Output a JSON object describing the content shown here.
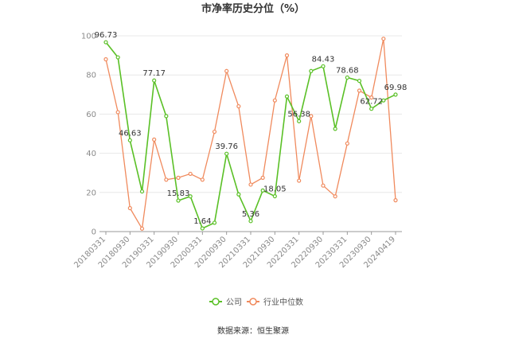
{
  "colors": {
    "company": "#5ac026",
    "industry": "#f08a5d",
    "grid": "#e8e8e8",
    "axis": "#999999"
  },
  "chart_data": {
    "type": "line",
    "title": "市净率历史分位（%）",
    "source_text": "数据来源：恒生聚源",
    "xlabel": "",
    "ylabel": "",
    "ylim": [
      0,
      100
    ],
    "yticks": [
      0,
      20,
      40,
      60,
      80,
      100
    ],
    "grid": true,
    "legend_position": "bottom",
    "x_tick_labels": [
      "20180331",
      "20180930",
      "20190331",
      "20190930",
      "20200331",
      "20200930",
      "20210331",
      "20210930",
      "20220331",
      "20220930",
      "20230331",
      "20230930",
      "20240419"
    ],
    "series": [
      {
        "name": "公司",
        "color": "#5ac026",
        "values": [
          96.73,
          89,
          46.63,
          20.5,
          77.17,
          59,
          15.83,
          18,
          1.64,
          4.5,
          39.76,
          19,
          5.36,
          21,
          18.05,
          69,
          56.38,
          82,
          84.43,
          52.5,
          78.68,
          77,
          62.72,
          67,
          69.98
        ]
      },
      {
        "name": "行业中位数",
        "color": "#f08a5d",
        "values": [
          88,
          61,
          12,
          1.5,
          47,
          26.5,
          27.5,
          29.5,
          26.5,
          51,
          82,
          64,
          24,
          27.5,
          67,
          90,
          26,
          59,
          23.5,
          18,
          45,
          72,
          68.5,
          98.5,
          16
        ]
      }
    ],
    "data_labels": [
      {
        "series": 0,
        "index": 0,
        "text": "96.73"
      },
      {
        "series": 0,
        "index": 2,
        "text": "46.63"
      },
      {
        "series": 0,
        "index": 4,
        "text": "77.17"
      },
      {
        "series": 0,
        "index": 6,
        "text": "15.83"
      },
      {
        "series": 0,
        "index": 8,
        "text": "1.64"
      },
      {
        "series": 0,
        "index": 10,
        "text": "39.76"
      },
      {
        "series": 0,
        "index": 12,
        "text": "5.36"
      },
      {
        "series": 0,
        "index": 14,
        "text": "18.05"
      },
      {
        "series": 0,
        "index": 16,
        "text": "56.38"
      },
      {
        "series": 0,
        "index": 18,
        "text": "84.43"
      },
      {
        "series": 0,
        "index": 20,
        "text": "78.68"
      },
      {
        "series": 0,
        "index": 22,
        "text": "62.72"
      },
      {
        "series": 0,
        "index": 24,
        "text": "69.98"
      }
    ]
  }
}
